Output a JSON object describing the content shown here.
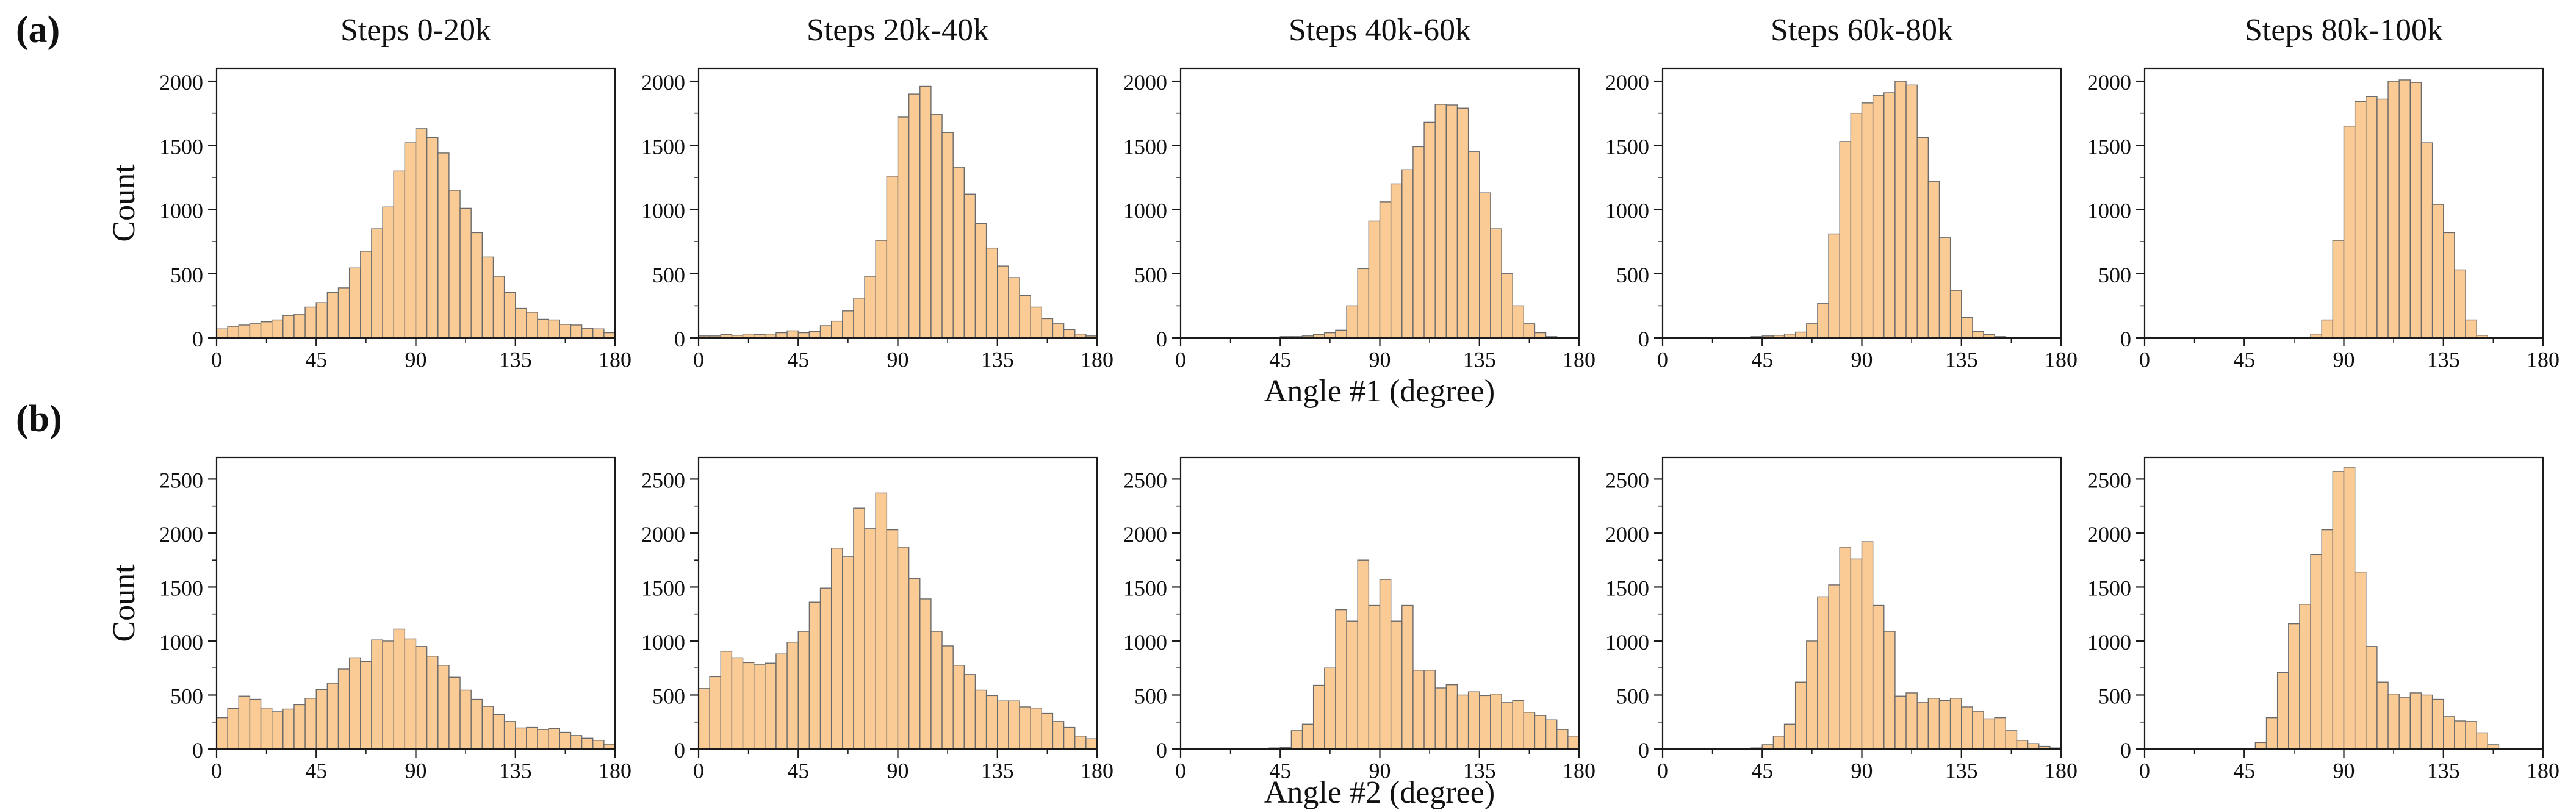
{
  "figure": {
    "row_a_label": "(a)",
    "row_b_label": "(b)"
  },
  "chart_data": {
    "type": "bar",
    "subtype": "histogram-grid",
    "grid": "5 columns x 2 rows, shared bin structure",
    "columns": [
      "Steps 0-20k",
      "Steps 20k-40k",
      "Steps 40k-60k",
      "Steps 60k-80k",
      "Steps 80k-100k"
    ],
    "bin_width_degrees": 5,
    "style": {
      "bar_fill": "#FBCB96",
      "bar_edge": "#6A6A6A",
      "frame": "#1B1B1B",
      "text": "#111111"
    },
    "rows": [
      {
        "label": "(a)",
        "ylabel": "Count",
        "xlabel": "Angle #1 (degree)",
        "xlim": [
          0,
          180
        ],
        "ylim": [
          0,
          2100
        ],
        "xticks": [
          0,
          45,
          90,
          135,
          180
        ],
        "yticks": [
          0,
          500,
          1000,
          1500,
          2000
        ],
        "show_titles": true,
        "panels": [
          {
            "title": "Steps 0-20k",
            "values": [
              70,
              90,
              100,
              110,
              125,
              140,
              175,
              185,
              240,
              275,
              355,
              390,
              545,
              675,
              850,
              1020,
              1300,
              1520,
              1630,
              1560,
              1440,
              1150,
              1010,
              820,
              630,
              480,
              355,
              230,
              200,
              145,
              140,
              105,
              100,
              75,
              70,
              40
            ]
          },
          {
            "title": "Steps 20k-40k",
            "values": [
              15,
              15,
              25,
              20,
              30,
              25,
              30,
              40,
              55,
              40,
              50,
              95,
              130,
              210,
              310,
              480,
              760,
              1260,
              1720,
              1900,
              1960,
              1740,
              1600,
              1330,
              1120,
              890,
              700,
              560,
              470,
              330,
              240,
              150,
              110,
              65,
              30,
              15
            ]
          },
          {
            "title": "Steps 40k-60k",
            "values": [
              0,
              0,
              0,
              0,
              0,
              5,
              5,
              5,
              5,
              10,
              10,
              15,
              25,
              40,
              60,
              250,
              540,
              910,
              1060,
              1200,
              1310,
              1490,
              1680,
              1820,
              1815,
              1790,
              1450,
              1130,
              850,
              500,
              250,
              110,
              40,
              10,
              0,
              0
            ]
          },
          {
            "title": "Steps 60k-80k",
            "values": [
              0,
              0,
              0,
              0,
              0,
              0,
              0,
              0,
              10,
              15,
              20,
              30,
              45,
              110,
              270,
              810,
              1530,
              1750,
              1830,
              1890,
              1910,
              2000,
              1970,
              1560,
              1220,
              780,
              370,
              160,
              50,
              25,
              10,
              0,
              0,
              0,
              0,
              0
            ]
          },
          {
            "title": "Steps 80k-100k",
            "values": [
              0,
              0,
              0,
              0,
              0,
              0,
              0,
              0,
              0,
              0,
              0,
              0,
              0,
              0,
              0,
              30,
              140,
              760,
              1650,
              1840,
              1880,
              1860,
              2000,
              2010,
              1990,
              1520,
              1040,
              820,
              530,
              140,
              20,
              0,
              0,
              0,
              0,
              0
            ]
          }
        ]
      },
      {
        "label": "(b)",
        "ylabel": "Count",
        "xlabel": "Angle #2 (degree)",
        "xlim": [
          0,
          180
        ],
        "ylim": [
          0,
          2700
        ],
        "xticks": [
          0,
          45,
          90,
          135,
          180
        ],
        "yticks": [
          0,
          500,
          1000,
          1500,
          2000,
          2500
        ],
        "show_titles": false,
        "panels": [
          {
            "title": "Steps 0-20k",
            "values": [
              290,
              375,
              490,
              460,
              380,
              345,
              370,
              410,
              470,
              550,
              610,
              740,
              845,
              810,
              1010,
              1000,
              1110,
              1020,
              950,
              860,
              775,
              665,
              545,
              460,
              395,
              320,
              255,
              195,
              200,
              180,
              190,
              155,
              125,
              100,
              80,
              45
            ]
          },
          {
            "title": "Steps 20k-40k",
            "values": [
              560,
              670,
              905,
              845,
              800,
              780,
              795,
              880,
              990,
              1090,
              1360,
              1490,
              1860,
              1780,
              2230,
              2040,
              2370,
              2030,
              1870,
              1580,
              1390,
              1090,
              955,
              775,
              690,
              545,
              495,
              445,
              445,
              390,
              380,
              330,
              255,
              200,
              120,
              95
            ]
          },
          {
            "title": "Steps 40k-60k",
            "values": [
              0,
              0,
              0,
              0,
              0,
              0,
              0,
              5,
              10,
              15,
              170,
              230,
              590,
              750,
              1290,
              1185,
              1750,
              1330,
              1570,
              1185,
              1330,
              730,
              730,
              565,
              595,
              500,
              530,
              495,
              510,
              430,
              450,
              340,
              310,
              270,
              180,
              120
            ]
          },
          {
            "title": "Steps 60k-80k",
            "values": [
              0,
              0,
              0,
              0,
              0,
              0,
              0,
              0,
              10,
              40,
              120,
              230,
              620,
              1000,
              1410,
              1520,
              1870,
              1760,
              1920,
              1330,
              1090,
              490,
              520,
              430,
              470,
              450,
              470,
              390,
              350,
              280,
              290,
              170,
              80,
              50,
              25,
              10
            ]
          },
          {
            "title": "Steps 80k-100k",
            "values": [
              0,
              0,
              0,
              0,
              0,
              0,
              0,
              0,
              0,
              0,
              60,
              290,
              710,
              1160,
              1340,
              1800,
              2030,
              2570,
              2610,
              1640,
              950,
              620,
              510,
              480,
              520,
              500,
              460,
              300,
              260,
              255,
              150,
              40,
              0,
              0,
              0,
              0
            ]
          }
        ]
      }
    ]
  }
}
